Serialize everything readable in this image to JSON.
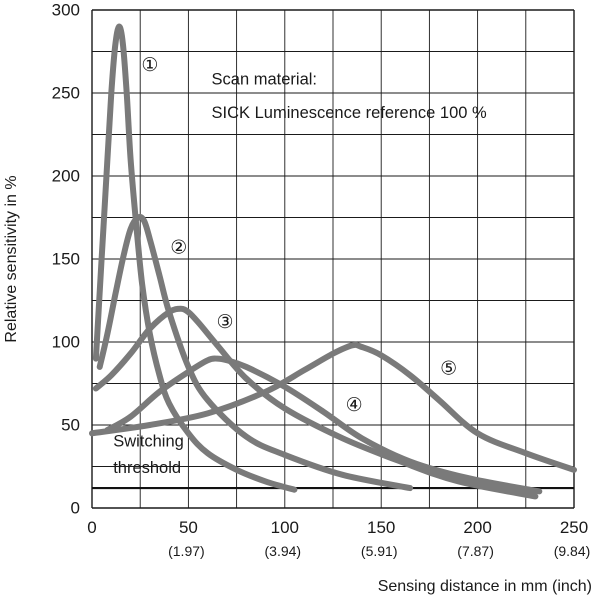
{
  "chart_data": {
    "type": "line",
    "xlabel": "Sensing distance in mm (inch)",
    "ylabel": "Relative sensitivity in %",
    "xlim": [
      0,
      250
    ],
    "ylim": [
      0,
      300
    ],
    "grid": true,
    "x_ticks": [
      "0",
      "50",
      "100",
      "150",
      "200",
      "250"
    ],
    "x_tick_values": [
      0,
      50,
      100,
      150,
      200,
      250
    ],
    "x_subticks": [
      "(1.97)",
      "(3.94)",
      "(5.91)",
      "(7.87)",
      "(9.84)"
    ],
    "x_subtick_values": [
      50,
      100,
      150,
      200,
      250
    ],
    "y_ticks": [
      "0",
      "50",
      "100",
      "150",
      "200",
      "250",
      "300"
    ],
    "y_tick_values": [
      0,
      50,
      100,
      150,
      200,
      250,
      300
    ],
    "annotation": {
      "line1": "Scan material:",
      "line2": "SICK Luminescence reference 100 %",
      "x": 62,
      "y1": 258,
      "y2": 238
    },
    "threshold": {
      "value": 12,
      "label_line1": "Switching",
      "label_line2": "threshold",
      "label_x": 11,
      "label_y1": 40,
      "label_y2": 24
    },
    "colors": {
      "curve": "#7a7a7a",
      "grid": "#1a1a1a",
      "threshold": "#111111"
    },
    "series": [
      {
        "name": "1",
        "label": "①",
        "label_x": 30,
        "label_y": 267,
        "x": [
          2,
          5,
          8,
          10,
          12,
          14,
          16,
          18,
          20,
          23,
          26,
          30,
          35,
          40,
          50,
          60,
          75,
          90,
          105
        ],
        "y": [
          90,
          150,
          210,
          250,
          278,
          290,
          280,
          250,
          210,
          170,
          135,
          105,
          80,
          63,
          45,
          33,
          23,
          16,
          11
        ]
      },
      {
        "name": "2",
        "label": "②",
        "label_x": 45,
        "label_y": 157,
        "x": [
          4,
          8,
          12,
          16,
          20,
          24,
          27,
          30,
          35,
          40,
          50,
          60,
          80,
          100,
          130,
          165
        ],
        "y": [
          85,
          105,
          128,
          150,
          168,
          175,
          173,
          162,
          140,
          118,
          85,
          65,
          43,
          32,
          20,
          12
        ]
      },
      {
        "name": "3",
        "label": "③",
        "label_x": 69,
        "label_y": 112,
        "x": [
          2,
          10,
          20,
          30,
          40,
          46,
          50,
          55,
          65,
          80,
          100,
          130,
          160,
          190,
          230
        ],
        "y": [
          72,
          80,
          93,
          108,
          118,
          120,
          118,
          112,
          98,
          78,
          60,
          42,
          28,
          16,
          7
        ]
      },
      {
        "name": "4",
        "label": "④",
        "label_x": 136,
        "label_y": 62,
        "x": [
          8,
          20,
          35,
          50,
          60,
          65,
          70,
          80,
          100,
          120,
          140,
          165,
          195,
          232
        ],
        "y": [
          47,
          55,
          70,
          82,
          89,
          90,
          89,
          85,
          73,
          58,
          42,
          28,
          18,
          10
        ]
      },
      {
        "name": "5",
        "label": "⑤",
        "label_x": 185,
        "label_y": 84,
        "x": [
          0,
          30,
          60,
          90,
          110,
          125,
          135,
          140,
          150,
          165,
          180,
          200,
          225,
          250
        ],
        "y": [
          45,
          50,
          57,
          70,
          83,
          93,
          98,
          97,
          92,
          80,
          65,
          45,
          33,
          23
        ]
      }
    ]
  }
}
